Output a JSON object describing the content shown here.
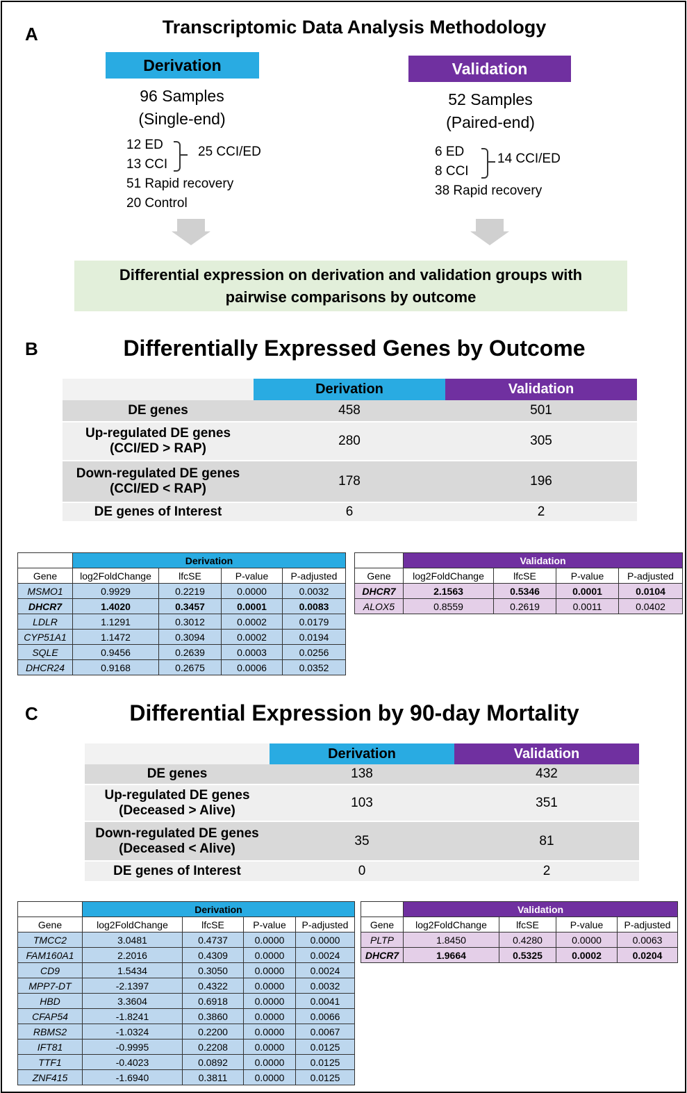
{
  "panel_a": {
    "label": "A",
    "title": "Transcriptomic Data Analysis Methodology",
    "derivation": {
      "header": "Derivation",
      "samples": "96 Samples",
      "type": "(Single-end)",
      "groups": [
        "12 ED",
        "13 CCI"
      ],
      "combined": "25 CCI/ED",
      "others": [
        "51 Rapid recovery",
        "20 Control"
      ]
    },
    "validation": {
      "header": "Validation",
      "samples": "52 Samples",
      "type": "(Paired-end)",
      "groups": [
        "6 ED",
        "8 CCI"
      ],
      "combined": "14 CCI/ED",
      "others": [
        "38 Rapid recovery"
      ]
    },
    "summary": "Differential expression on derivation and validation groups with pairwise comparisons by outcome"
  },
  "panel_b": {
    "label": "B",
    "title": "Differentially Expressed Genes by Outcome",
    "summary_table": {
      "columns": [
        "Derivation",
        "Validation"
      ],
      "rows": [
        {
          "label": [
            "DE genes"
          ],
          "values": [
            458,
            501
          ]
        },
        {
          "label": [
            "Up-regulated DE genes",
            "(CCI/ED > RAP)"
          ],
          "values": [
            280,
            305
          ]
        },
        {
          "label": [
            "Down-regulated DE genes",
            "(CCI/ED < RAP)"
          ],
          "values": [
            178,
            196
          ]
        },
        {
          "label": [
            "DE genes of Interest"
          ],
          "values": [
            6,
            2
          ]
        }
      ]
    },
    "gene_tables": [
      {
        "group": "Derivation",
        "columns": [
          "Gene",
          "log2FoldChange",
          "lfcSE",
          "P-value",
          "P-adjusted"
        ],
        "bold_rows": [
          1
        ],
        "rows": [
          [
            "MSMO1",
            "0.9929",
            "0.2219",
            "0.0000",
            "0.0032"
          ],
          [
            "DHCR7",
            "1.4020",
            "0.3457",
            "0.0001",
            "0.0083"
          ],
          [
            "LDLR",
            "1.1291",
            "0.3012",
            "0.0002",
            "0.0179"
          ],
          [
            "CYP51A1",
            "1.1472",
            "0.3094",
            "0.0002",
            "0.0194"
          ],
          [
            "SQLE",
            "0.9456",
            "0.2639",
            "0.0003",
            "0.0256"
          ],
          [
            "DHCR24",
            "0.9168",
            "0.2675",
            "0.0006",
            "0.0352"
          ]
        ]
      },
      {
        "group": "Validation",
        "columns": [
          "Gene",
          "log2FoldChange",
          "lfcSE",
          "P-value",
          "P-adjusted"
        ],
        "bold_rows": [
          0
        ],
        "rows": [
          [
            "DHCR7",
            "2.1563",
            "0.5346",
            "0.0001",
            "0.0104"
          ],
          [
            "ALOX5",
            "0.8559",
            "0.2619",
            "0.0011",
            "0.0402"
          ]
        ]
      }
    ]
  },
  "panel_c": {
    "label": "C",
    "title": "Differential Expression by 90-day Mortality",
    "summary_table": {
      "columns": [
        "Derivation",
        "Validation"
      ],
      "rows": [
        {
          "label": [
            "DE genes"
          ],
          "values": [
            138,
            432
          ]
        },
        {
          "label": [
            "Up-regulated DE genes",
            "(Deceased > Alive)"
          ],
          "values": [
            103,
            351
          ]
        },
        {
          "label": [
            "Down-regulated DE genes",
            "(Deceased < Alive)"
          ],
          "values": [
            35,
            81
          ]
        },
        {
          "label": [
            "DE genes of Interest"
          ],
          "values": [
            0,
            2
          ]
        }
      ]
    },
    "gene_tables": [
      {
        "group": "Derivation",
        "columns": [
          "Gene",
          "log2FoldChange",
          "lfcSE",
          "P-value",
          "P-adjusted"
        ],
        "bold_rows": [],
        "rows": [
          [
            "TMCC2",
            "3.0481",
            "0.4737",
            "0.0000",
            "0.0000"
          ],
          [
            "FAM160A1",
            "2.2016",
            "0.4309",
            "0.0000",
            "0.0024"
          ],
          [
            "CD9",
            "1.5434",
            "0.3050",
            "0.0000",
            "0.0024"
          ],
          [
            "MPP7-DT",
            "-2.1397",
            "0.4322",
            "0.0000",
            "0.0032"
          ],
          [
            "HBD",
            "3.3604",
            "0.6918",
            "0.0000",
            "0.0041"
          ],
          [
            "CFAP54",
            "-1.8241",
            "0.3860",
            "0.0000",
            "0.0066"
          ],
          [
            "RBMS2",
            "-1.0324",
            "0.2200",
            "0.0000",
            "0.0067"
          ],
          [
            "IFT81",
            "-0.9995",
            "0.2208",
            "0.0000",
            "0.0125"
          ],
          [
            "TTF1",
            "-0.4023",
            "0.0892",
            "0.0000",
            "0.0125"
          ],
          [
            "ZNF415",
            "-1.6940",
            "0.3811",
            "0.0000",
            "0.0125"
          ]
        ]
      },
      {
        "group": "Validation",
        "columns": [
          "Gene",
          "log2FoldChange",
          "lfcSE",
          "P-value",
          "P-adjusted"
        ],
        "bold_rows": [
          1
        ],
        "rows": [
          [
            "PLTP",
            "1.8450",
            "0.4280",
            "0.0000",
            "0.0063"
          ],
          [
            "DHCR7",
            "1.9664",
            "0.5325",
            "0.0002",
            "0.0204"
          ]
        ]
      }
    ]
  }
}
